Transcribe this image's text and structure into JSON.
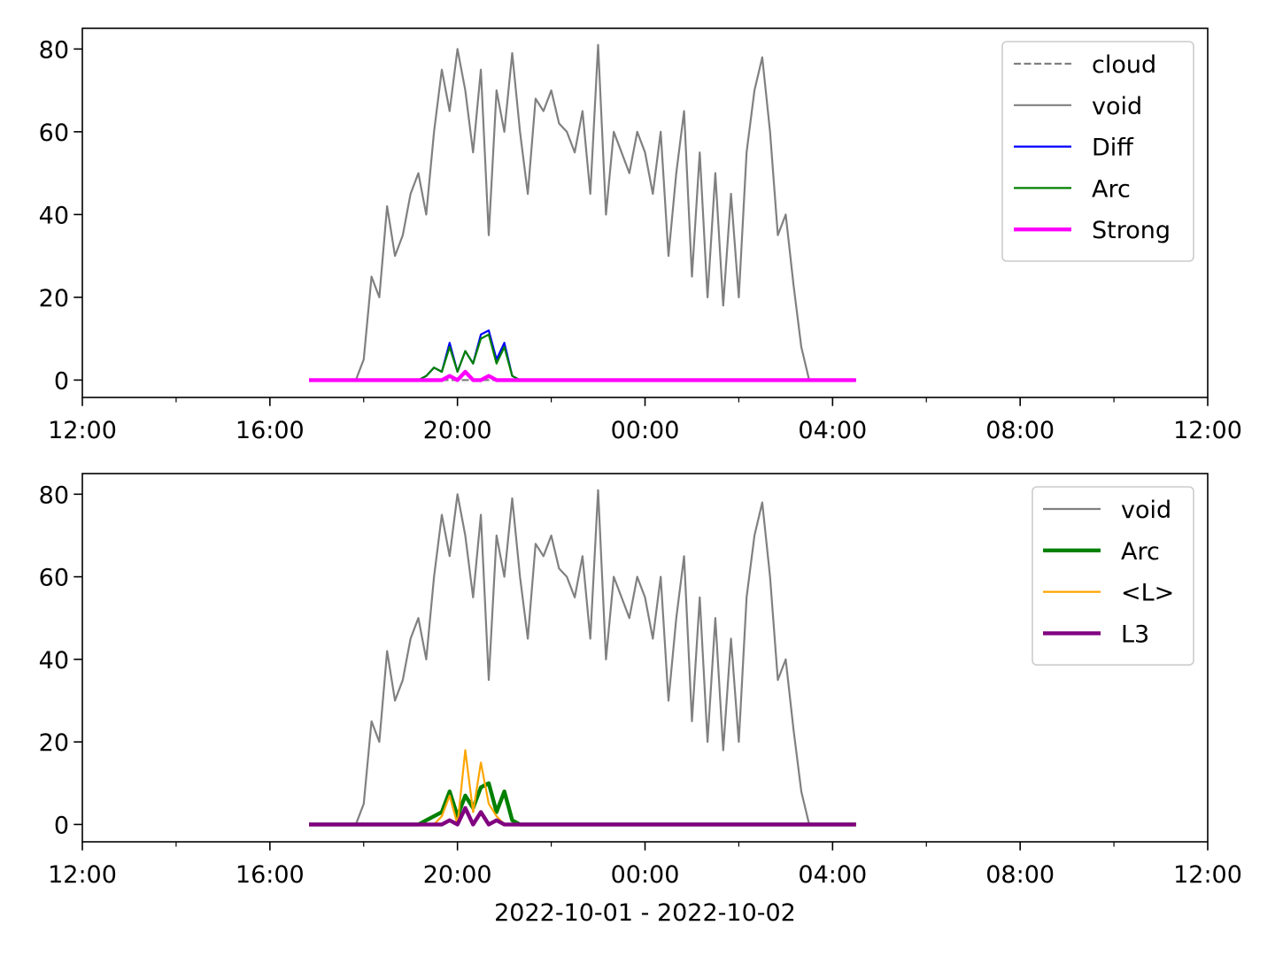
{
  "chart_data": [
    {
      "type": "line",
      "x": [
        "2022-10-01T16:50",
        "2022-10-01T17:00",
        "2022-10-01T17:10",
        "2022-10-01T17:20",
        "2022-10-01T17:30",
        "2022-10-01T17:40",
        "2022-10-01T17:50",
        "2022-10-01T18:00",
        "2022-10-01T18:10",
        "2022-10-01T18:20",
        "2022-10-01T18:30",
        "2022-10-01T18:40",
        "2022-10-01T18:50",
        "2022-10-01T19:00",
        "2022-10-01T19:10",
        "2022-10-01T19:20",
        "2022-10-01T19:30",
        "2022-10-01T19:40",
        "2022-10-01T19:50",
        "2022-10-01T20:00",
        "2022-10-01T20:10",
        "2022-10-01T20:20",
        "2022-10-01T20:30",
        "2022-10-01T20:40",
        "2022-10-01T20:50",
        "2022-10-01T21:00",
        "2022-10-01T21:10",
        "2022-10-01T21:20",
        "2022-10-01T21:30",
        "2022-10-01T21:40",
        "2022-10-01T21:50",
        "2022-10-01T22:00",
        "2022-10-01T22:10",
        "2022-10-01T22:20",
        "2022-10-01T22:30",
        "2022-10-01T22:40",
        "2022-10-01T22:50",
        "2022-10-01T23:00",
        "2022-10-01T23:10",
        "2022-10-01T23:20",
        "2022-10-01T23:30",
        "2022-10-01T23:40",
        "2022-10-01T23:50",
        "2022-10-02T00:00",
        "2022-10-02T00:10",
        "2022-10-02T00:20",
        "2022-10-02T00:30",
        "2022-10-02T00:40",
        "2022-10-02T00:50",
        "2022-10-02T01:00",
        "2022-10-02T01:10",
        "2022-10-02T01:20",
        "2022-10-02T01:30",
        "2022-10-02T01:40",
        "2022-10-02T01:50",
        "2022-10-02T02:00",
        "2022-10-02T02:10",
        "2022-10-02T02:20",
        "2022-10-02T02:30",
        "2022-10-02T02:40",
        "2022-10-02T02:50",
        "2022-10-02T03:00",
        "2022-10-02T03:10",
        "2022-10-02T03:20",
        "2022-10-02T03:30",
        "2022-10-02T03:40",
        "2022-10-02T03:50",
        "2022-10-02T04:00",
        "2022-10-02T04:10",
        "2022-10-02T04:20",
        "2022-10-02T04:30"
      ],
      "series": [
        {
          "name": "cloud",
          "color": "#808080",
          "linewidth": 1,
          "linestyle": "dashed",
          "values": [
            0,
            0,
            0,
            0,
            0,
            0,
            0,
            0,
            0,
            0,
            0,
            0,
            0,
            0,
            0,
            0,
            0,
            0,
            0,
            0,
            0,
            0,
            0,
            0,
            0,
            0,
            0,
            0,
            0,
            0,
            0,
            0,
            0,
            0,
            0,
            0,
            0,
            0,
            0,
            0,
            0,
            0,
            0,
            0,
            0,
            0,
            0,
            0,
            0,
            0,
            0,
            0,
            0,
            0,
            0,
            0,
            0,
            0,
            0,
            0,
            0,
            0,
            0,
            0,
            0,
            0,
            0,
            0,
            0,
            0,
            0
          ]
        },
        {
          "name": "void",
          "color": "#808080",
          "linewidth": 1,
          "linestyle": "solid",
          "values": [
            0,
            0,
            0,
            0,
            0,
            0,
            0,
            5,
            25,
            20,
            42,
            30,
            35,
            45,
            50,
            40,
            60,
            75,
            65,
            80,
            70,
            55,
            75,
            35,
            70,
            60,
            79,
            60,
            45,
            68,
            65,
            70,
            62,
            60,
            55,
            65,
            45,
            81,
            40,
            60,
            55,
            50,
            60,
            55,
            45,
            60,
            30,
            50,
            65,
            25,
            55,
            20,
            50,
            18,
            45,
            20,
            55,
            70,
            78,
            60,
            35,
            40,
            23,
            8,
            0,
            0,
            0,
            0,
            0,
            0,
            0
          ]
        },
        {
          "name": "Diff",
          "color": "#0000ff",
          "linewidth": 1,
          "linestyle": "solid",
          "values": [
            0,
            0,
            0,
            0,
            0,
            0,
            0,
            0,
            0,
            0,
            0,
            0,
            0,
            0,
            0,
            1,
            3,
            2,
            9,
            2,
            7,
            4,
            11,
            12,
            5,
            9,
            1,
            0,
            0,
            0,
            0,
            0,
            0,
            0,
            0,
            0,
            0,
            0,
            0,
            0,
            0,
            0,
            0,
            0,
            0,
            0,
            0,
            0,
            0,
            0,
            0,
            0,
            0,
            0,
            0,
            0,
            0,
            0,
            0,
            0,
            0,
            0,
            0,
            0,
            0,
            0,
            0,
            0,
            0,
            0,
            0
          ]
        },
        {
          "name": "Arc",
          "color": "#008000",
          "linewidth": 1,
          "linestyle": "solid",
          "values": [
            0,
            0,
            0,
            0,
            0,
            0,
            0,
            0,
            0,
            0,
            0,
            0,
            0,
            0,
            0,
            1,
            3,
            2,
            8,
            2,
            7,
            4,
            10,
            11,
            4,
            8,
            1,
            0,
            0,
            0,
            0,
            0,
            0,
            0,
            0,
            0,
            0,
            0,
            0,
            0,
            0,
            0,
            0,
            0,
            0,
            0,
            0,
            0,
            0,
            0,
            0,
            0,
            0,
            0,
            0,
            0,
            0,
            0,
            0,
            0,
            0,
            0,
            0,
            0,
            0,
            0,
            0,
            0,
            0,
            0,
            0
          ]
        },
        {
          "name": "Strong",
          "color": "#ff00ff",
          "linewidth": 2,
          "linestyle": "solid",
          "values": [
            0,
            0,
            0,
            0,
            0,
            0,
            0,
            0,
            0,
            0,
            0,
            0,
            0,
            0,
            0,
            0,
            0,
            0,
            1,
            0,
            2,
            0,
            0,
            1,
            0,
            0,
            0,
            0,
            0,
            0,
            0,
            0,
            0,
            0,
            0,
            0,
            0,
            0,
            0,
            0,
            0,
            0,
            0,
            0,
            0,
            0,
            0,
            0,
            0,
            0,
            0,
            0,
            0,
            0,
            0,
            0,
            0,
            0,
            0,
            0,
            0,
            0,
            0,
            0,
            0,
            0,
            0,
            0,
            0,
            0,
            0
          ]
        }
      ],
      "xlim": [
        "2022-10-01T12:00",
        "2022-10-02T12:00"
      ],
      "xticks": [
        {
          "value": "2022-10-01T12:00",
          "label": "12:00"
        },
        {
          "value": "2022-10-01T16:00",
          "label": "16:00"
        },
        {
          "value": "2022-10-01T20:00",
          "label": "20:00"
        },
        {
          "value": "2022-10-02T00:00",
          "label": "00:00"
        },
        {
          "value": "2022-10-02T04:00",
          "label": "04:00"
        },
        {
          "value": "2022-10-02T08:00",
          "label": "08:00"
        },
        {
          "value": "2022-10-02T12:00",
          "label": "12:00"
        }
      ],
      "xminorticks": [
        "2022-10-01T14:00",
        "2022-10-01T18:00",
        "2022-10-01T22:00",
        "2022-10-02T02:00",
        "2022-10-02T06:00",
        "2022-10-02T10:00"
      ],
      "ylim": [
        -4.2,
        85
      ],
      "yticks": [
        0,
        20,
        40,
        60,
        80
      ],
      "legend": "upper right"
    },
    {
      "type": "line",
      "x": [
        "2022-10-01T16:50",
        "2022-10-01T17:00",
        "2022-10-01T17:10",
        "2022-10-01T17:20",
        "2022-10-01T17:30",
        "2022-10-01T17:40",
        "2022-10-01T17:50",
        "2022-10-01T18:00",
        "2022-10-01T18:10",
        "2022-10-01T18:20",
        "2022-10-01T18:30",
        "2022-10-01T18:40",
        "2022-10-01T18:50",
        "2022-10-01T19:00",
        "2022-10-01T19:10",
        "2022-10-01T19:20",
        "2022-10-01T19:30",
        "2022-10-01T19:40",
        "2022-10-01T19:50",
        "2022-10-01T20:00",
        "2022-10-01T20:10",
        "2022-10-01T20:20",
        "2022-10-01T20:30",
        "2022-10-01T20:40",
        "2022-10-01T20:50",
        "2022-10-01T21:00",
        "2022-10-01T21:10",
        "2022-10-01T21:20",
        "2022-10-01T21:30",
        "2022-10-01T21:40",
        "2022-10-01T21:50",
        "2022-10-01T22:00",
        "2022-10-01T22:10",
        "2022-10-01T22:20",
        "2022-10-01T22:30",
        "2022-10-01T22:40",
        "2022-10-01T22:50",
        "2022-10-01T23:00",
        "2022-10-01T23:10",
        "2022-10-01T23:20",
        "2022-10-01T23:30",
        "2022-10-01T23:40",
        "2022-10-01T23:50",
        "2022-10-02T00:00",
        "2022-10-02T00:10",
        "2022-10-02T00:20",
        "2022-10-02T00:30",
        "2022-10-02T00:40",
        "2022-10-02T00:50",
        "2022-10-02T01:00",
        "2022-10-02T01:10",
        "2022-10-02T01:20",
        "2022-10-02T01:30",
        "2022-10-02T01:40",
        "2022-10-02T01:50",
        "2022-10-02T02:00",
        "2022-10-02T02:10",
        "2022-10-02T02:20",
        "2022-10-02T02:30",
        "2022-10-02T02:40",
        "2022-10-02T02:50",
        "2022-10-02T03:00",
        "2022-10-02T03:10",
        "2022-10-02T03:20",
        "2022-10-02T03:30",
        "2022-10-02T03:40",
        "2022-10-02T03:50",
        "2022-10-02T04:00",
        "2022-10-02T04:10",
        "2022-10-02T04:20",
        "2022-10-02T04:30"
      ],
      "series": [
        {
          "name": "void",
          "color": "#808080",
          "linewidth": 1,
          "linestyle": "solid",
          "values": [
            0,
            0,
            0,
            0,
            0,
            0,
            0,
            5,
            25,
            20,
            42,
            30,
            35,
            45,
            50,
            40,
            60,
            75,
            65,
            80,
            70,
            55,
            75,
            35,
            70,
            60,
            79,
            60,
            45,
            68,
            65,
            70,
            62,
            60,
            55,
            65,
            45,
            81,
            40,
            60,
            55,
            50,
            60,
            55,
            45,
            60,
            30,
            50,
            65,
            25,
            55,
            20,
            50,
            18,
            45,
            20,
            55,
            70,
            78,
            60,
            35,
            40,
            23,
            8,
            0,
            0,
            0,
            0,
            0,
            0,
            0
          ]
        },
        {
          "name": "Arc",
          "color": "#008000",
          "linewidth": 2,
          "linestyle": "solid",
          "values": [
            0,
            0,
            0,
            0,
            0,
            0,
            0,
            0,
            0,
            0,
            0,
            0,
            0,
            0,
            0,
            1,
            2,
            3,
            8,
            2,
            7,
            4,
            9,
            10,
            3,
            8,
            1,
            0,
            0,
            0,
            0,
            0,
            0,
            0,
            0,
            0,
            0,
            0,
            0,
            0,
            0,
            0,
            0,
            0,
            0,
            0,
            0,
            0,
            0,
            0,
            0,
            0,
            0,
            0,
            0,
            0,
            0,
            0,
            0,
            0,
            0,
            0,
            0,
            0,
            0,
            0,
            0,
            0,
            0,
            0,
            0
          ]
        },
        {
          "name": "<L>",
          "color": "#ffa500",
          "linewidth": 1,
          "linestyle": "solid",
          "values": [
            0,
            0,
            0,
            0,
            0,
            0,
            0,
            0,
            0,
            0,
            0,
            0,
            0,
            0,
            0,
            0,
            0,
            2,
            7,
            0,
            18,
            3,
            15,
            5,
            2,
            0,
            0,
            0,
            0,
            0,
            0,
            0,
            0,
            0,
            0,
            0,
            0,
            0,
            0,
            0,
            0,
            0,
            0,
            0,
            0,
            0,
            0,
            0,
            0,
            0,
            0,
            0,
            0,
            0,
            0,
            0,
            0,
            0,
            0,
            0,
            0,
            0,
            0,
            0,
            0,
            0,
            0,
            0,
            0,
            0,
            0
          ]
        },
        {
          "name": "L3",
          "color": "#800080",
          "linewidth": 2,
          "linestyle": "solid",
          "values": [
            0,
            0,
            0,
            0,
            0,
            0,
            0,
            0,
            0,
            0,
            0,
            0,
            0,
            0,
            0,
            0,
            0,
            0,
            1,
            0,
            4,
            0,
            3,
            0,
            1,
            0,
            0,
            0,
            0,
            0,
            0,
            0,
            0,
            0,
            0,
            0,
            0,
            0,
            0,
            0,
            0,
            0,
            0,
            0,
            0,
            0,
            0,
            0,
            0,
            0,
            0,
            0,
            0,
            0,
            0,
            0,
            0,
            0,
            0,
            0,
            0,
            0,
            0,
            0,
            0,
            0,
            0,
            0,
            0,
            0,
            0
          ]
        }
      ],
      "xlim": [
        "2022-10-01T12:00",
        "2022-10-02T12:00"
      ],
      "xticks": [
        {
          "value": "2022-10-01T12:00",
          "label": "12:00"
        },
        {
          "value": "2022-10-01T16:00",
          "label": "16:00"
        },
        {
          "value": "2022-10-01T20:00",
          "label": "20:00"
        },
        {
          "value": "2022-10-02T00:00",
          "label": "00:00"
        },
        {
          "value": "2022-10-02T04:00",
          "label": "04:00"
        },
        {
          "value": "2022-10-02T08:00",
          "label": "08:00"
        },
        {
          "value": "2022-10-02T12:00",
          "label": "12:00"
        }
      ],
      "xminorticks": [
        "2022-10-01T14:00",
        "2022-10-01T18:00",
        "2022-10-01T22:00",
        "2022-10-02T02:00",
        "2022-10-02T06:00",
        "2022-10-02T10:00"
      ],
      "ylim": [
        -4.2,
        85
      ],
      "yticks": [
        0,
        20,
        40,
        60,
        80
      ],
      "legend": "upper right",
      "xlabel": "2022-10-01 - 2022-10-02"
    }
  ]
}
